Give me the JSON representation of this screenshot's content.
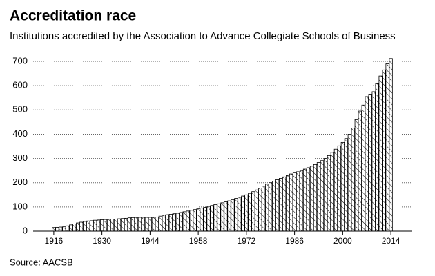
{
  "chart_data": {
    "type": "bar",
    "title": "Accreditation race",
    "subtitle": "Institutions accredited by the Association to Advance Collegiate Schools of Business",
    "source": "Source: AACSB",
    "x": [
      1916,
      1917,
      1918,
      1919,
      1920,
      1921,
      1922,
      1923,
      1924,
      1925,
      1926,
      1927,
      1928,
      1929,
      1930,
      1931,
      1932,
      1933,
      1934,
      1935,
      1936,
      1937,
      1938,
      1939,
      1940,
      1941,
      1942,
      1943,
      1944,
      1945,
      1946,
      1947,
      1948,
      1949,
      1950,
      1951,
      1952,
      1953,
      1954,
      1955,
      1956,
      1957,
      1958,
      1959,
      1960,
      1961,
      1962,
      1963,
      1964,
      1965,
      1966,
      1967,
      1968,
      1969,
      1970,
      1971,
      1972,
      1973,
      1974,
      1975,
      1976,
      1977,
      1978,
      1979,
      1980,
      1981,
      1982,
      1983,
      1984,
      1985,
      1986,
      1987,
      1988,
      1989,
      1990,
      1991,
      1992,
      1993,
      1994,
      1995,
      1996,
      1997,
      1998,
      1999,
      2000,
      2001,
      2002,
      2003,
      2004,
      2005,
      2006,
      2007,
      2008,
      2009,
      2010,
      2011,
      2012,
      2013,
      2014
    ],
    "values": [
      15,
      16,
      17,
      18,
      22,
      26,
      30,
      34,
      37,
      40,
      42,
      43,
      45,
      46,
      47,
      48,
      49,
      50,
      50,
      51,
      52,
      53,
      55,
      56,
      57,
      57,
      57,
      57,
      57,
      57,
      58,
      62,
      66,
      68,
      70,
      72,
      74,
      77,
      80,
      83,
      86,
      89,
      92,
      95,
      98,
      102,
      106,
      110,
      113,
      117,
      121,
      125,
      130,
      135,
      140,
      145,
      150,
      156,
      163,
      170,
      178,
      186,
      194,
      200,
      206,
      212,
      218,
      224,
      230,
      236,
      241,
      245,
      250,
      256,
      262,
      268,
      275,
      283,
      291,
      300,
      312,
      325,
      338,
      352,
      366,
      382,
      400,
      425,
      460,
      495,
      520,
      555,
      565,
      575,
      608,
      640,
      665,
      690,
      712
    ],
    "color": "#000000",
    "xlim": [
      1910,
      2020
    ],
    "xticks": [
      1916,
      1930,
      1944,
      1958,
      1972,
      1986,
      2000,
      2014
    ],
    "ylim": [
      0,
      720
    ],
    "yticks": [
      0,
      100,
      200,
      300,
      400,
      500,
      600,
      700
    ],
    "grid": true
  }
}
